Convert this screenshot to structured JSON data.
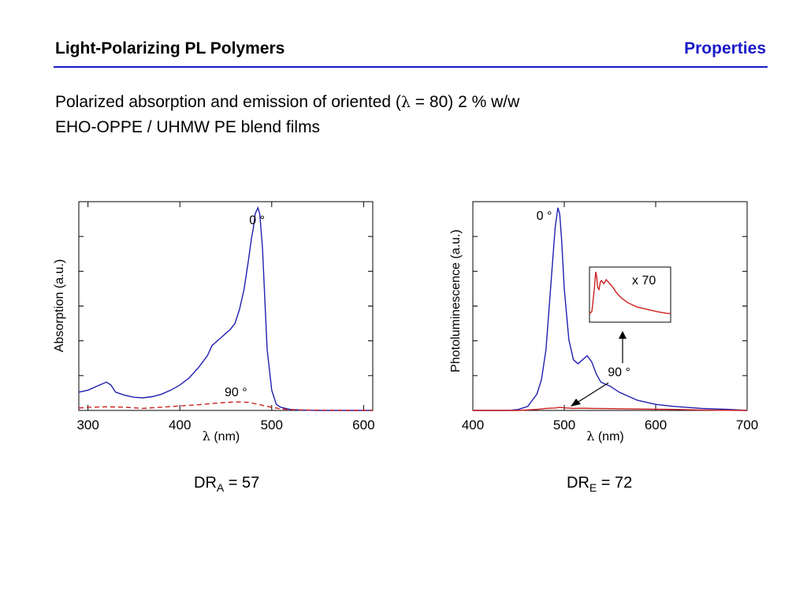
{
  "header": {
    "title": "Light-Polarizing PL Polymers",
    "section": "Properties",
    "section_color": "#1a1ac8",
    "rule_color": "#1a1ac8"
  },
  "subtitle": {
    "line1_prefix": "Polarized absorption and emission of oriented (",
    "lambda": "λ",
    "line1_suffix": " = 80) 2 % w/w",
    "line2": "EHO-OPPE / UHMW PE blend films"
  },
  "chart_data": [
    {
      "type": "line",
      "xlabel_symbol": "λ",
      "xlabel_unit": " (nm)",
      "ylabel": "Absorption (a.u.)",
      "xlim": [
        290,
        610
      ],
      "ylim": [
        0,
        1.03
      ],
      "xticks": [
        300,
        400,
        500,
        600
      ],
      "yticks_count": 5,
      "grid": false,
      "series": [
        {
          "name": "0 °",
          "color": "#2020b0",
          "dash": "",
          "x": [
            290,
            300,
            310,
            315,
            320,
            325,
            330,
            340,
            350,
            360,
            370,
            380,
            390,
            400,
            410,
            420,
            430,
            435,
            440,
            445,
            450,
            455,
            460,
            465,
            470,
            475,
            478,
            480,
            482,
            485,
            487,
            490,
            493,
            495,
            500,
            505,
            510,
            520,
            530,
            540,
            550,
            560,
            570,
            580,
            590,
            600,
            610
          ],
          "y": [
            0.09,
            0.1,
            0.12,
            0.13,
            0.14,
            0.125,
            0.09,
            0.075,
            0.065,
            0.062,
            0.068,
            0.08,
            0.1,
            0.125,
            0.16,
            0.21,
            0.27,
            0.32,
            0.34,
            0.36,
            0.38,
            0.4,
            0.43,
            0.5,
            0.6,
            0.75,
            0.85,
            0.9,
            0.97,
            1.0,
            0.97,
            0.8,
            0.5,
            0.3,
            0.1,
            0.03,
            0.015,
            0.005,
            0.002,
            0.001,
            0,
            0,
            0,
            0,
            0,
            0,
            0
          ]
        },
        {
          "name": "90 °",
          "color": "#cc2020",
          "dash": "6,4",
          "x": [
            290,
            300,
            320,
            340,
            360,
            380,
            400,
            420,
            440,
            460,
            475,
            480,
            490,
            500,
            510,
            520,
            540,
            560,
            580,
            600,
            610
          ],
          "y": [
            0.012,
            0.015,
            0.018,
            0.016,
            0.01,
            0.016,
            0.022,
            0.028,
            0.036,
            0.042,
            0.04,
            0.035,
            0.025,
            0.015,
            0.008,
            0.004,
            0.002,
            0.001,
            0,
            0,
            0
          ]
        }
      ],
      "annotations": [
        {
          "text": "0 °",
          "x": 484,
          "y": 0.92
        },
        {
          "text": "90 °",
          "x": 461,
          "y": 0.07
        }
      ],
      "ratio": {
        "prefix": "DR",
        "sub": "A",
        "suffix": " = 57"
      }
    },
    {
      "type": "line",
      "xlabel_symbol": "λ",
      "xlabel_unit": " (nm)",
      "ylabel": "Photoluminescence (a.u.)",
      "xlim": [
        400,
        700
      ],
      "ylim": [
        0,
        1.03
      ],
      "xticks": [
        400,
        500,
        600,
        700
      ],
      "yticks_count": 5,
      "grid": false,
      "series": [
        {
          "name": "0 °",
          "color": "#2020b0",
          "dash": "",
          "x": [
            400,
            440,
            450,
            460,
            470,
            475,
            480,
            485,
            490,
            493,
            495,
            497,
            500,
            505,
            510,
            515,
            520,
            525,
            530,
            535,
            540,
            545,
            550,
            560,
            570,
            580,
            600,
            620,
            650,
            680,
            700
          ],
          "y": [
            0,
            0,
            0.005,
            0.02,
            0.08,
            0.15,
            0.3,
            0.6,
            0.9,
            1.0,
            0.97,
            0.85,
            0.6,
            0.35,
            0.25,
            0.23,
            0.25,
            0.27,
            0.24,
            0.18,
            0.14,
            0.13,
            0.12,
            0.09,
            0.07,
            0.05,
            0.03,
            0.02,
            0.01,
            0.005,
            0
          ]
        },
        {
          "name": "90 °",
          "color": "#cc2020",
          "dash": "",
          "x": [
            400,
            450,
            470,
            480,
            490,
            495,
            500,
            510,
            520,
            530,
            550,
            580,
            620,
            650,
            700
          ],
          "y": [
            0,
            0,
            0.005,
            0.01,
            0.012,
            0.015,
            0.013,
            0.01,
            0.011,
            0.01,
            0.009,
            0.007,
            0.005,
            0.002,
            0
          ]
        }
      ],
      "inset": {
        "label": "x 70",
        "color": "#cc2020",
        "x": [
          480,
          485,
          490,
          493,
          495,
          497,
          500,
          503,
          505,
          510,
          515,
          520,
          525,
          530,
          535,
          540,
          550,
          560,
          570,
          580,
          600,
          620,
          640,
          650
        ],
        "y": [
          0.05,
          0.1,
          0.6,
          1.0,
          0.9,
          0.65,
          0.6,
          0.78,
          0.8,
          0.73,
          0.82,
          0.76,
          0.7,
          0.63,
          0.55,
          0.48,
          0.38,
          0.3,
          0.25,
          0.2,
          0.15,
          0.1,
          0.06,
          0.05
        ]
      },
      "annotations": [
        {
          "text": "0 °",
          "x": 478,
          "y": 0.94
        },
        {
          "text": "90 °",
          "x": 560,
          "y": 0.17
        }
      ],
      "ratio": {
        "prefix": "DR",
        "sub": "E",
        "suffix": " = 72"
      }
    }
  ]
}
